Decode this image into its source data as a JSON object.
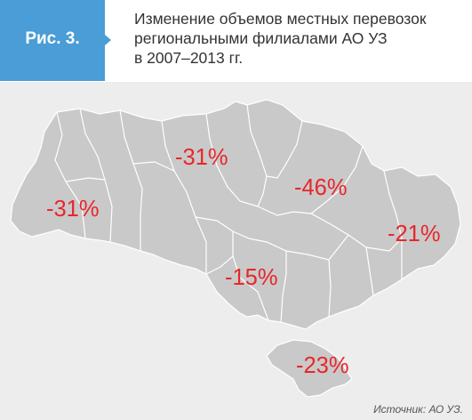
{
  "figure": {
    "label": "Рис. 3.",
    "title_lines": [
      "Изменение объемов местных перевозок",
      "региональными филиалами АО УЗ",
      "в 2007–2013 гг."
    ]
  },
  "map": {
    "region_fill": "#c9c9c9",
    "border_color": "#ffffff",
    "label_color": "#e8262a",
    "labels": [
      {
        "text": "-31%"
      },
      {
        "text": "-31%"
      },
      {
        "text": "-46%"
      },
      {
        "text": "-21%"
      },
      {
        "text": "-15%"
      },
      {
        "text": "-23%"
      }
    ]
  },
  "source": "Источник: АО УЗ."
}
